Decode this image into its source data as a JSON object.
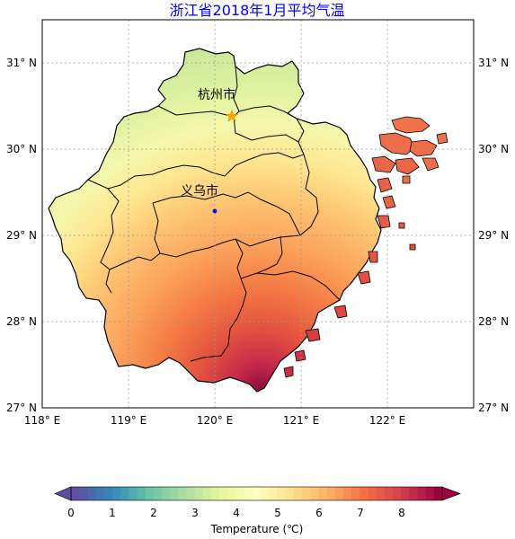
{
  "map": {
    "title": "浙江省2018年1月平均气温",
    "lon_ticks": [
      "118° E",
      "119° E",
      "120° E",
      "121° E",
      "122° E"
    ],
    "lat_ticks": [
      "27° N",
      "28° N",
      "29° N",
      "30° N",
      "31° N"
    ],
    "lon_range": [
      118,
      123
    ],
    "lat_range": [
      27,
      31.5
    ],
    "cities": [
      {
        "name": "杭州市",
        "marker": "star",
        "color": "#ffa500"
      },
      {
        "name": "义乌市",
        "marker": "dot",
        "color": "#0000ff"
      }
    ]
  },
  "colorbar": {
    "label": "Temperature (℃)",
    "ticks": [
      "0",
      "1",
      "2",
      "3",
      "4",
      "5",
      "6",
      "7",
      "8"
    ],
    "range": [
      0,
      9
    ],
    "colormap": "Spectral_r",
    "extend": "both"
  },
  "colors": {
    "title": "#0000ff",
    "grid": "#9a9a9a",
    "border": "#000000"
  }
}
